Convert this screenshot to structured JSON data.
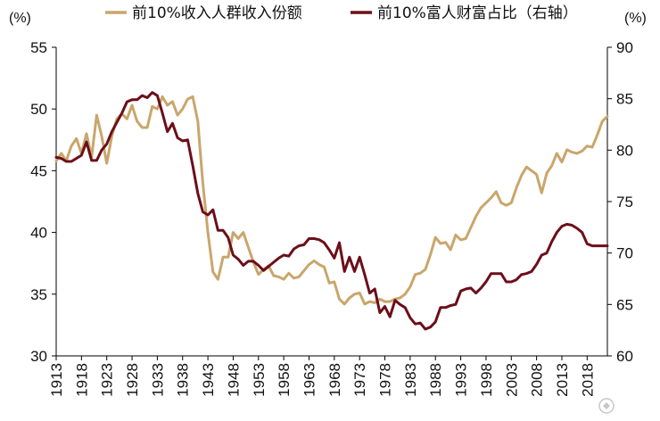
{
  "chart_data": {
    "type": "line",
    "title": "",
    "left_axis": {
      "unit": "(%)",
      "ylim": [
        30,
        55
      ],
      "ticks": [
        30,
        35,
        40,
        45,
        50,
        55
      ]
    },
    "right_axis": {
      "unit": "(%)",
      "ylim": [
        60,
        90
      ],
      "ticks": [
        60,
        65,
        70,
        75,
        80,
        85,
        90
      ]
    },
    "xlim": [
      1913,
      2022
    ],
    "x_ticks": [
      1913,
      1918,
      1923,
      1928,
      1933,
      1938,
      1943,
      1948,
      1953,
      1958,
      1963,
      1968,
      1973,
      1978,
      1983,
      1988,
      1993,
      1998,
      2003,
      2008,
      2013,
      2018
    ],
    "series": [
      {
        "name": "前10%收入人群收入份额",
        "axis": "left",
        "color": "#C9A66B",
        "points": [
          [
            1913,
            45.8
          ],
          [
            1914,
            46.4
          ],
          [
            1915,
            45.8
          ],
          [
            1916,
            47.0
          ],
          [
            1917,
            47.6
          ],
          [
            1918,
            46.4
          ],
          [
            1919,
            48.0
          ],
          [
            1920,
            46.1
          ],
          [
            1921,
            49.5
          ],
          [
            1922,
            47.8
          ],
          [
            1923,
            45.6
          ],
          [
            1924,
            47.8
          ],
          [
            1925,
            49.2
          ],
          [
            1926,
            49.6
          ],
          [
            1927,
            49.2
          ],
          [
            1928,
            50.3
          ],
          [
            1929,
            49.0
          ],
          [
            1930,
            48.5
          ],
          [
            1931,
            48.5
          ],
          [
            1932,
            50.2
          ],
          [
            1933,
            50.0
          ],
          [
            1934,
            51.0
          ],
          [
            1935,
            50.3
          ],
          [
            1936,
            50.6
          ],
          [
            1937,
            49.5
          ],
          [
            1938,
            50.0
          ],
          [
            1939,
            50.8
          ],
          [
            1940,
            51.0
          ],
          [
            1941,
            49.0
          ],
          [
            1942,
            44.0
          ],
          [
            1943,
            40.0
          ],
          [
            1944,
            36.8
          ],
          [
            1945,
            36.2
          ],
          [
            1946,
            38.0
          ],
          [
            1947,
            38.0
          ],
          [
            1948,
            40.0
          ],
          [
            1949,
            39.5
          ],
          [
            1950,
            40.0
          ],
          [
            1951,
            38.8
          ],
          [
            1952,
            37.6
          ],
          [
            1953,
            36.6
          ],
          [
            1954,
            37.0
          ],
          [
            1955,
            37.3
          ],
          [
            1956,
            36.5
          ],
          [
            1957,
            36.4
          ],
          [
            1958,
            36.2
          ],
          [
            1959,
            36.7
          ],
          [
            1960,
            36.3
          ],
          [
            1961,
            36.4
          ],
          [
            1962,
            36.9
          ],
          [
            1963,
            37.4
          ],
          [
            1964,
            37.7
          ],
          [
            1965,
            37.4
          ],
          [
            1966,
            37.2
          ],
          [
            1967,
            35.9
          ],
          [
            1968,
            36.0
          ],
          [
            1969,
            34.6
          ],
          [
            1970,
            34.2
          ],
          [
            1971,
            34.7
          ],
          [
            1972,
            35.0
          ],
          [
            1973,
            35.1
          ],
          [
            1974,
            34.2
          ],
          [
            1975,
            34.4
          ],
          [
            1976,
            34.3
          ],
          [
            1977,
            34.6
          ],
          [
            1978,
            34.4
          ],
          [
            1979,
            34.4
          ],
          [
            1980,
            34.6
          ],
          [
            1981,
            34.7
          ],
          [
            1982,
            35.0
          ],
          [
            1983,
            35.6
          ],
          [
            1984,
            36.6
          ],
          [
            1985,
            36.7
          ],
          [
            1986,
            37.0
          ],
          [
            1987,
            38.2
          ],
          [
            1988,
            39.6
          ],
          [
            1989,
            39.1
          ],
          [
            1990,
            39.2
          ],
          [
            1991,
            38.6
          ],
          [
            1992,
            39.8
          ],
          [
            1993,
            39.4
          ],
          [
            1994,
            39.5
          ],
          [
            1995,
            40.4
          ],
          [
            1996,
            41.3
          ],
          [
            1997,
            42.0
          ],
          [
            1998,
            42.4
          ],
          [
            1999,
            42.8
          ],
          [
            2000,
            43.3
          ],
          [
            2001,
            42.4
          ],
          [
            2002,
            42.2
          ],
          [
            2003,
            42.4
          ],
          [
            2004,
            43.6
          ],
          [
            2005,
            44.6
          ],
          [
            2006,
            45.3
          ],
          [
            2007,
            45.0
          ],
          [
            2008,
            44.7
          ],
          [
            2009,
            43.2
          ],
          [
            2010,
            44.8
          ],
          [
            2011,
            45.4
          ],
          [
            2012,
            46.4
          ],
          [
            2013,
            45.7
          ],
          [
            2014,
            46.7
          ],
          [
            2015,
            46.5
          ],
          [
            2016,
            46.4
          ],
          [
            2017,
            46.6
          ],
          [
            2018,
            47.0
          ],
          [
            2019,
            46.9
          ],
          [
            2020,
            47.9
          ],
          [
            2021,
            49.0
          ],
          [
            2022,
            49.4
          ]
        ]
      },
      {
        "name": "前10%富人财富占比（右轴）",
        "axis": "right",
        "color": "#6B0F1A",
        "points": [
          [
            1913,
            79.3
          ],
          [
            1914,
            79.2
          ],
          [
            1915,
            78.9
          ],
          [
            1916,
            78.9
          ],
          [
            1917,
            79.2
          ],
          [
            1918,
            79.5
          ],
          [
            1919,
            80.8
          ],
          [
            1920,
            79.0
          ],
          [
            1921,
            79.0
          ],
          [
            1922,
            80.0
          ],
          [
            1923,
            80.6
          ],
          [
            1924,
            81.8
          ],
          [
            1925,
            82.7
          ],
          [
            1926,
            83.6
          ],
          [
            1927,
            84.7
          ],
          [
            1928,
            84.9
          ],
          [
            1929,
            84.9
          ],
          [
            1930,
            85.3
          ],
          [
            1931,
            85.1
          ],
          [
            1932,
            85.6
          ],
          [
            1933,
            85.3
          ],
          [
            1934,
            83.6
          ],
          [
            1935,
            81.8
          ],
          [
            1936,
            82.6
          ],
          [
            1937,
            81.2
          ],
          [
            1938,
            80.9
          ],
          [
            1939,
            81.0
          ],
          [
            1940,
            78.5
          ],
          [
            1941,
            75.8
          ],
          [
            1942,
            74.0
          ],
          [
            1943,
            73.7
          ],
          [
            1944,
            74.2
          ],
          [
            1945,
            72.2
          ],
          [
            1946,
            72.2
          ],
          [
            1947,
            71.5
          ],
          [
            1948,
            69.8
          ],
          [
            1949,
            69.4
          ],
          [
            1950,
            68.8
          ],
          [
            1951,
            69.2
          ],
          [
            1952,
            69.2
          ],
          [
            1953,
            68.8
          ],
          [
            1954,
            68.3
          ],
          [
            1955,
            68.7
          ],
          [
            1956,
            69.1
          ],
          [
            1957,
            69.5
          ],
          [
            1958,
            69.8
          ],
          [
            1959,
            69.7
          ],
          [
            1960,
            70.4
          ],
          [
            1961,
            70.7
          ],
          [
            1962,
            70.8
          ],
          [
            1963,
            71.4
          ],
          [
            1964,
            71.4
          ],
          [
            1965,
            71.3
          ],
          [
            1966,
            71.0
          ],
          [
            1967,
            70.3
          ],
          [
            1968,
            69.5
          ],
          [
            1969,
            71.0
          ],
          [
            1970,
            68.2
          ],
          [
            1971,
            69.6
          ],
          [
            1972,
            68.2
          ],
          [
            1973,
            69.6
          ],
          [
            1974,
            67.9
          ],
          [
            1975,
            66.1
          ],
          [
            1976,
            66.5
          ],
          [
            1977,
            64.2
          ],
          [
            1978,
            64.8
          ],
          [
            1979,
            63.8
          ],
          [
            1980,
            65.4
          ],
          [
            1981,
            65.0
          ],
          [
            1982,
            64.7
          ],
          [
            1983,
            63.7
          ],
          [
            1984,
            63.1
          ],
          [
            1985,
            63.2
          ],
          [
            1986,
            62.6
          ],
          [
            1987,
            62.8
          ],
          [
            1988,
            63.3
          ],
          [
            1989,
            64.7
          ],
          [
            1990,
            64.7
          ],
          [
            1991,
            64.9
          ],
          [
            1992,
            65.0
          ],
          [
            1993,
            66.3
          ],
          [
            1994,
            66.5
          ],
          [
            1995,
            66.6
          ],
          [
            1996,
            66.1
          ],
          [
            1997,
            66.6
          ],
          [
            1998,
            67.2
          ],
          [
            1999,
            68.0
          ],
          [
            2000,
            68.0
          ],
          [
            2001,
            68.0
          ],
          [
            2002,
            67.2
          ],
          [
            2003,
            67.2
          ],
          [
            2004,
            67.4
          ],
          [
            2005,
            67.9
          ],
          [
            2006,
            68.0
          ],
          [
            2007,
            68.2
          ],
          [
            2008,
            68.9
          ],
          [
            2009,
            69.8
          ],
          [
            2010,
            70.0
          ],
          [
            2011,
            71.1
          ],
          [
            2012,
            72.0
          ],
          [
            2013,
            72.6
          ],
          [
            2014,
            72.8
          ],
          [
            2015,
            72.7
          ],
          [
            2016,
            72.4
          ],
          [
            2017,
            72.0
          ],
          [
            2018,
            70.9
          ],
          [
            2019,
            70.7
          ],
          [
            2020,
            70.7
          ],
          [
            2021,
            70.7
          ],
          [
            2022,
            70.7
          ]
        ]
      }
    ]
  }
}
